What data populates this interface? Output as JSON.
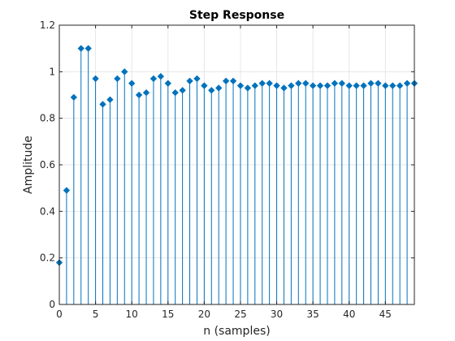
{
  "chart_data": {
    "type": "stem",
    "title": "Step Response",
    "xlabel": "n (samples)",
    "ylabel": "Amplitude",
    "xlim": [
      0,
      49
    ],
    "ylim": [
      0,
      1.2
    ],
    "xticks": [
      0,
      5,
      10,
      15,
      20,
      25,
      30,
      35,
      40,
      45
    ],
    "yticks": [
      0,
      0.2,
      0.4,
      0.6,
      0.8,
      1,
      1.2
    ],
    "xtick_labels": [
      "0",
      "5",
      "10",
      "15",
      "20",
      "25",
      "30",
      "35",
      "40",
      "45"
    ],
    "ytick_labels": [
      "0",
      "0.2",
      "0.4",
      "0.6",
      "0.8",
      "1",
      "1.2"
    ],
    "grid": true,
    "color": "#0072BD",
    "x": [
      0,
      1,
      2,
      3,
      4,
      5,
      6,
      7,
      8,
      9,
      10,
      11,
      12,
      13,
      14,
      15,
      16,
      17,
      18,
      19,
      20,
      21,
      22,
      23,
      24,
      25,
      26,
      27,
      28,
      29,
      30,
      31,
      32,
      33,
      34,
      35,
      36,
      37,
      38,
      39,
      40,
      41,
      42,
      43,
      44,
      45,
      46,
      47,
      48,
      49
    ],
    "values": [
      0.18,
      0.49,
      0.89,
      1.1,
      1.1,
      0.97,
      0.86,
      0.88,
      0.97,
      1.0,
      0.95,
      0.9,
      0.91,
      0.97,
      0.98,
      0.95,
      0.91,
      0.92,
      0.96,
      0.97,
      0.94,
      0.92,
      0.93,
      0.96,
      0.96,
      0.94,
      0.93,
      0.94,
      0.95,
      0.95,
      0.94,
      0.93,
      0.94,
      0.95,
      0.95,
      0.94,
      0.94,
      0.94,
      0.95,
      0.95,
      0.94,
      0.94,
      0.94,
      0.95,
      0.95,
      0.94,
      0.94,
      0.94,
      0.95,
      0.95
    ]
  }
}
